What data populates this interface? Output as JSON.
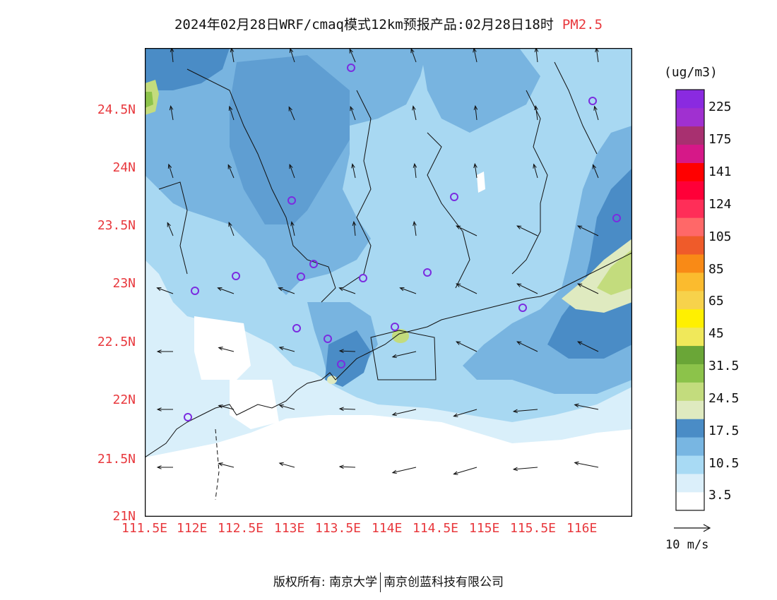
{
  "header": {
    "title": "2024年02月28日WRF/cmaq模式12km预报产品:02月28日18时",
    "pollutant": "PM2.5"
  },
  "map": {
    "lat_labels": [
      "24.5N",
      "24N",
      "23.5N",
      "23N",
      "22.5N",
      "22N",
      "21.5N",
      "21N"
    ],
    "lon_labels": [
      "111.5E",
      "112E",
      "112.5E",
      "113E",
      "113.5E",
      "114E",
      "114.5E",
      "115E",
      "115.5E",
      "116E"
    ],
    "colors": {
      "background": "#ffffff",
      "very_light": "#d9effa",
      "light": "#a8d8f2",
      "medium": "#78b4e0",
      "dark": "#4a8cc6",
      "pale_green": "#dfeac0",
      "yellow_green": "#c3dc7d",
      "green": "#8cc34a",
      "station": "#7b2ce0"
    }
  },
  "legend": {
    "unit": "(ug/m3)",
    "labels": [
      "225",
      "175",
      "141",
      "124",
      "105",
      "85",
      "65",
      "45",
      "31.5",
      "24.5",
      "17.5",
      "10.5",
      "3.5"
    ],
    "colors": [
      "#ffffff",
      "#dbeffa",
      "#a8daf4",
      "#78b6e2",
      "#4a8cc6",
      "#dfeac0",
      "#c3dc7d",
      "#8cc34a",
      "#6aa637",
      "#f0e85a",
      "#fff000",
      "#f7d24b",
      "#fbbb2e",
      "#f98a16",
      "#ef5b2a",
      "#ff6868",
      "#ff2e58",
      "#ff0038",
      "#ff0000",
      "#d61888",
      "#a83070",
      "#a030d0",
      "#8a2ae0"
    ],
    "wind_reference": "10 m/s"
  },
  "footer": {
    "left": "版权所有: 南京大学",
    "right": "南京创蓝科技有限公司"
  }
}
